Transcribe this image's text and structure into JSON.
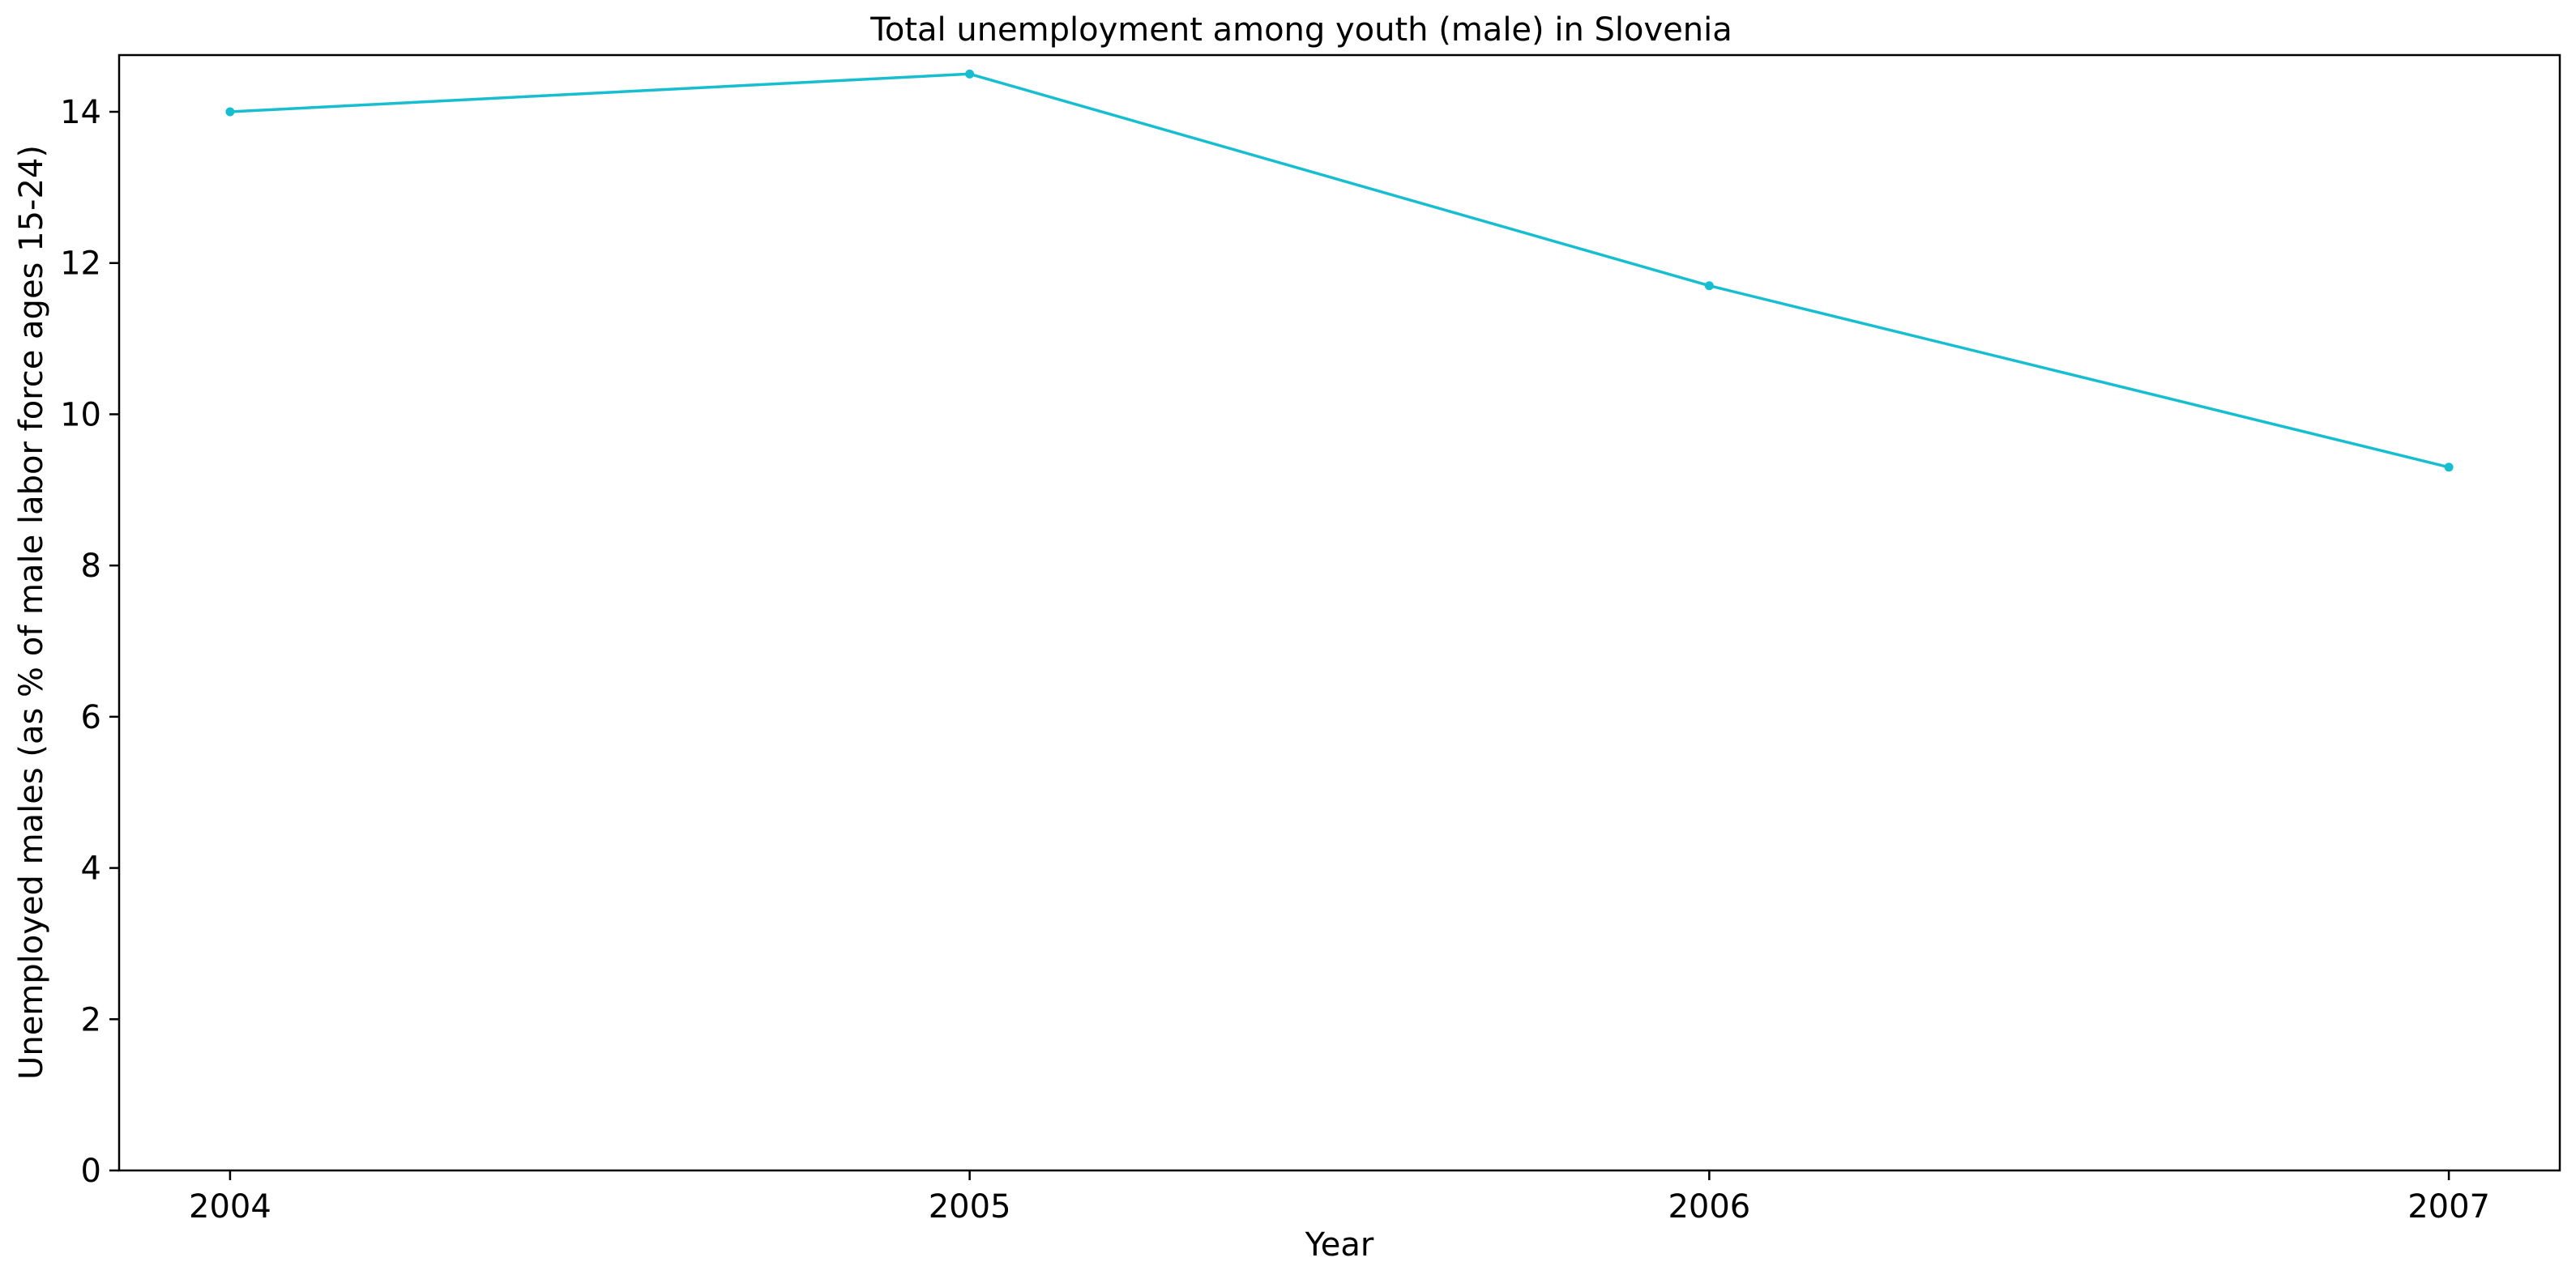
{
  "chart_data": {
    "type": "line",
    "title": "Total unemployment among youth (male) in Slovenia",
    "xlabel": "Year",
    "ylabel": "Unemployed males (as % of male labor force ages 15-24)",
    "x": [
      "2004",
      "2005",
      "2006",
      "2007"
    ],
    "series": [
      {
        "values": [
          14.0,
          14.5,
          11.7,
          9.3
        ],
        "color": "#17becf"
      }
    ],
    "xlim": [
      2003.85,
      2007.15
    ],
    "ylim": [
      0,
      14.75
    ],
    "yticks": [
      0,
      2,
      4,
      6,
      8,
      10,
      12,
      14
    ],
    "xticks": [
      "2004",
      "2005",
      "2006",
      "2007"
    ],
    "grid": false,
    "legend": "none"
  }
}
